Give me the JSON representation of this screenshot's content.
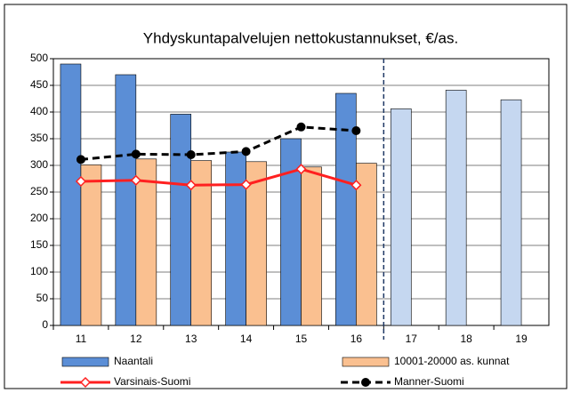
{
  "chart_data": {
    "type": "bar",
    "title": "Yhdyskuntapalvelujen nettokustannukset, €/as.",
    "categories": [
      "11",
      "12",
      "13",
      "14",
      "15",
      "16",
      "17",
      "18",
      "19"
    ],
    "series": [
      {
        "name": "Naantali",
        "type": "bar",
        "color": "#5b8ed6",
        "colors": [
          "#5b8ed6",
          "#5b8ed6",
          "#5b8ed6",
          "#5b8ed6",
          "#5b8ed6",
          "#5b8ed6",
          "#c5d7f0",
          "#c5d7f0",
          "#c5d7f0"
        ],
        "values": [
          490,
          470,
          396,
          325,
          350,
          435,
          406,
          441,
          423
        ]
      },
      {
        "name": "10001-20000 as. kunnat",
        "type": "bar",
        "color": "#fac090",
        "values": [
          301,
          312,
          309,
          307,
          297,
          304,
          null,
          null,
          null
        ]
      },
      {
        "name": "Varsinais-Suomi",
        "type": "line",
        "color": "#ff2020",
        "marker": "diamond",
        "values": [
          270,
          272,
          263,
          264,
          293,
          263,
          null,
          null,
          null
        ]
      },
      {
        "name": "Manner-Suomi",
        "type": "line",
        "color": "#000000",
        "marker": "circle",
        "dashed": true,
        "values": [
          311,
          321,
          320,
          326,
          372,
          365,
          null,
          null,
          null
        ]
      }
    ],
    "ylim": [
      0,
      500
    ],
    "yticks": [
      0,
      50,
      100,
      150,
      200,
      250,
      300,
      350,
      400,
      450,
      500
    ],
    "grid": true
  }
}
